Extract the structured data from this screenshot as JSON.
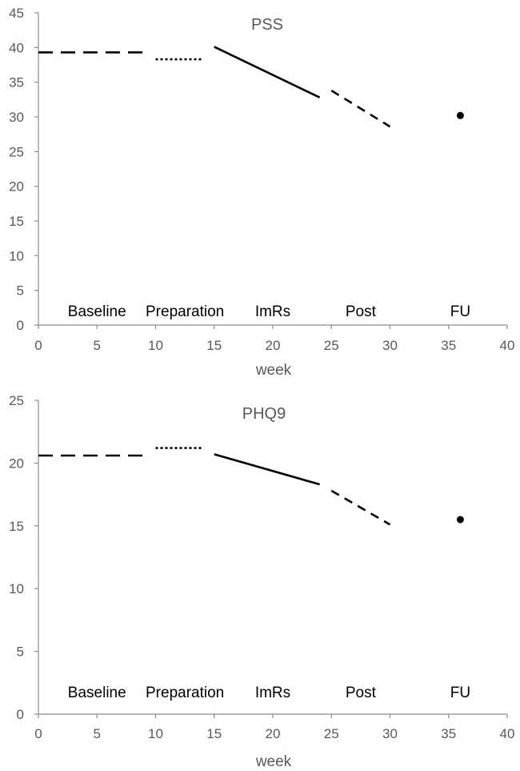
{
  "chart_data": [
    {
      "type": "line",
      "title": "PSS",
      "xlabel": "week",
      "ylabel": "",
      "xlim": [
        0,
        40
      ],
      "ylim": [
        0,
        45
      ],
      "xticks": [
        "0",
        "5",
        "10",
        "15",
        "20",
        "25",
        "30",
        "35",
        "40"
      ],
      "yticks": [
        "0",
        "5",
        "10",
        "15",
        "20",
        "25",
        "30",
        "35",
        "40",
        "45"
      ],
      "phase_labels": [
        {
          "text": "Baseline",
          "x": 5
        },
        {
          "text": "Preparation",
          "x": 12.5
        },
        {
          "text": "ImRs",
          "x": 20
        },
        {
          "text": "Post",
          "x": 27.5
        },
        {
          "text": "FU",
          "x": 36
        }
      ],
      "series": [
        {
          "style": "dash",
          "points": [
            [
              0,
              39.3
            ],
            [
              9.3,
              39.3
            ]
          ]
        },
        {
          "style": "dot",
          "points": [
            [
              10,
              38.3
            ],
            [
              14,
              38.3
            ]
          ]
        },
        {
          "style": "solid",
          "points": [
            [
              15,
              40.1
            ],
            [
              24,
              32.8
            ]
          ]
        },
        {
          "style": "short-dash",
          "points": [
            [
              25,
              33.8
            ],
            [
              30,
              28.6
            ]
          ]
        },
        {
          "style": "marker",
          "points": [
            [
              36,
              30.2
            ]
          ]
        }
      ],
      "grid": false
    },
    {
      "type": "line",
      "title": "PHQ9",
      "xlabel": "week",
      "ylabel": "",
      "xlim": [
        0,
        40
      ],
      "ylim": [
        0,
        25
      ],
      "xticks": [
        "0",
        "5",
        "10",
        "15",
        "20",
        "25",
        "30",
        "35",
        "40"
      ],
      "yticks": [
        "0",
        "5",
        "10",
        "15",
        "20",
        "25"
      ],
      "phase_labels": [
        {
          "text": "Baseline",
          "x": 5
        },
        {
          "text": "Preparation",
          "x": 12.5
        },
        {
          "text": "ImRs",
          "x": 20
        },
        {
          "text": "Post",
          "x": 27.5
        },
        {
          "text": "FU",
          "x": 36
        }
      ],
      "series": [
        {
          "style": "dash",
          "points": [
            [
              0,
              20.6
            ],
            [
              9.3,
              20.6
            ]
          ]
        },
        {
          "style": "dot",
          "points": [
            [
              10,
              21.2
            ],
            [
              14,
              21.2
            ]
          ]
        },
        {
          "style": "solid",
          "points": [
            [
              15,
              20.7
            ],
            [
              24,
              18.3
            ]
          ]
        },
        {
          "style": "short-dash",
          "points": [
            [
              25,
              17.8
            ],
            [
              30,
              15.1
            ]
          ]
        },
        {
          "style": "marker",
          "points": [
            [
              36,
              15.5
            ]
          ]
        }
      ],
      "grid": false
    }
  ]
}
